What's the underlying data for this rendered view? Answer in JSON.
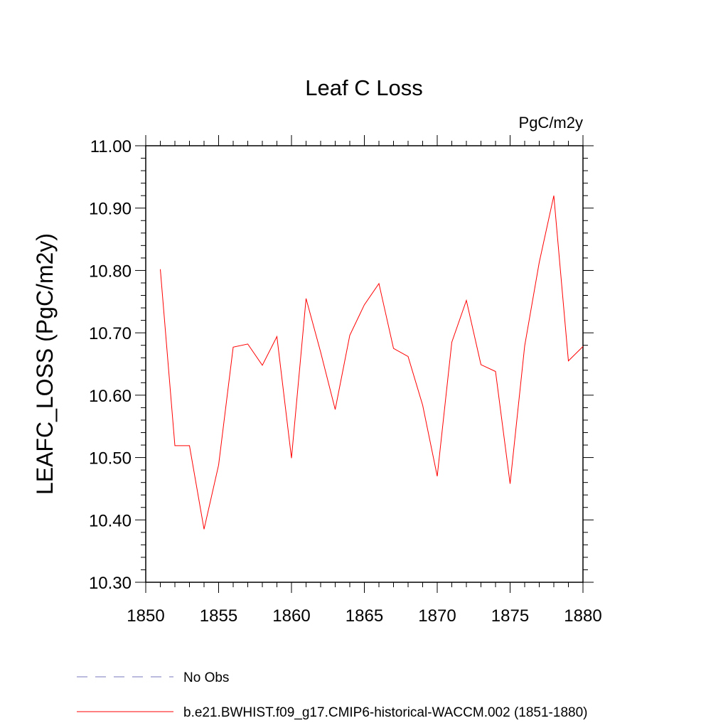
{
  "chart_data": {
    "type": "line",
    "title": "Leaf C Loss",
    "units": "PgC/m2y",
    "ylabel": "LEAFC_LOSS  (PgC/m2y)",
    "xlabel": "",
    "xlim": [
      1850,
      1880
    ],
    "ylim": [
      10.3,
      11.0
    ],
    "x_ticks": [
      "1850",
      "1855",
      "1860",
      "1865",
      "1870",
      "1875",
      "1880"
    ],
    "y_ticks": [
      "10.30",
      "10.40",
      "10.50",
      "10.60",
      "10.70",
      "10.80",
      "10.90",
      "11.00"
    ],
    "series": [
      {
        "name": "b.e21.BWHIST.f09_g17.CMIP6-historical-WACCM.002 (1851-1880)",
        "color": "#ff0000",
        "x": [
          1851,
          1852,
          1853,
          1854,
          1855,
          1856,
          1857,
          1858,
          1859,
          1860,
          1861,
          1862,
          1863,
          1864,
          1865,
          1866,
          1867,
          1868,
          1869,
          1870,
          1871,
          1872,
          1873,
          1874,
          1875,
          1876,
          1877,
          1878,
          1879,
          1880
        ],
        "values": [
          10.802,
          10.519,
          10.519,
          10.385,
          10.488,
          10.677,
          10.682,
          10.648,
          10.694,
          10.499,
          10.755,
          10.669,
          10.577,
          10.696,
          10.745,
          10.779,
          10.675,
          10.662,
          10.584,
          10.47,
          10.685,
          10.752,
          10.649,
          10.638,
          10.458,
          10.679,
          10.813,
          10.92,
          10.655,
          10.678
        ]
      }
    ],
    "legend": [
      {
        "label": "No Obs",
        "color": "#7777bb",
        "style": "dashed"
      },
      {
        "label": "b.e21.BWHIST.f09_g17.CMIP6-historical-WACCM.002 (1851-1880)",
        "color": "#ff0000",
        "style": "solid"
      }
    ],
    "legend_position": "bottom-left",
    "grid": false
  }
}
